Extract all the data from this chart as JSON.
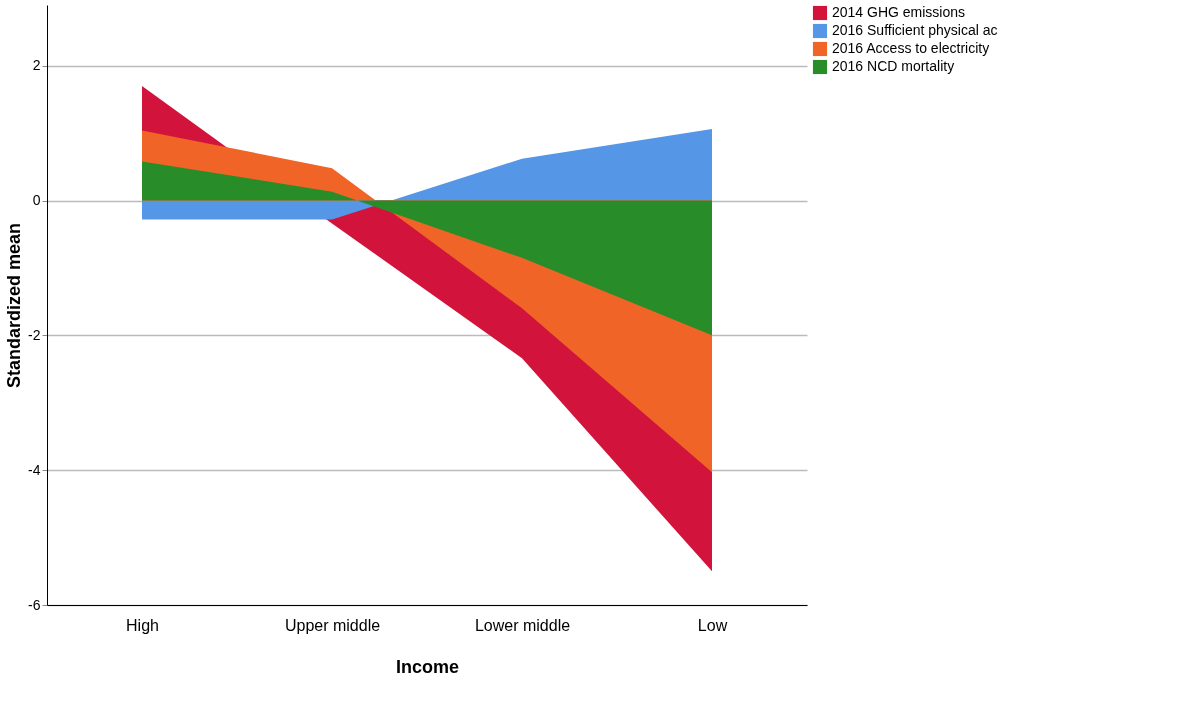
{
  "chart_data": {
    "type": "area",
    "xlabel": "Income",
    "ylabel": "Standardized mean",
    "categories": [
      "High",
      "Upper middle",
      "Lower middle",
      "Low"
    ],
    "series": [
      {
        "name": "2014 GHG emissions",
        "color": "#d2143c",
        "values": [
          1.7,
          -0.34,
          -2.34,
          -5.5
        ]
      },
      {
        "name": "2016 Sufficient physical ac",
        "color": "#5596e6",
        "values": [
          -0.28,
          -0.28,
          0.62,
          1.06
        ]
      },
      {
        "name": "2016 Access to electricity",
        "color": "#f06428",
        "values": [
          1.04,
          0.48,
          -1.6,
          -4.03
        ]
      },
      {
        "name": "2016 NCD mortality",
        "color": "#288c28",
        "values": [
          0.58,
          0.13,
          -0.85,
          -2.0
        ]
      }
    ],
    "ylim": [
      -6,
      2.9
    ],
    "yticks": [
      -6,
      -4,
      -2,
      0,
      2
    ],
    "grid": "y",
    "legend": "top right"
  }
}
